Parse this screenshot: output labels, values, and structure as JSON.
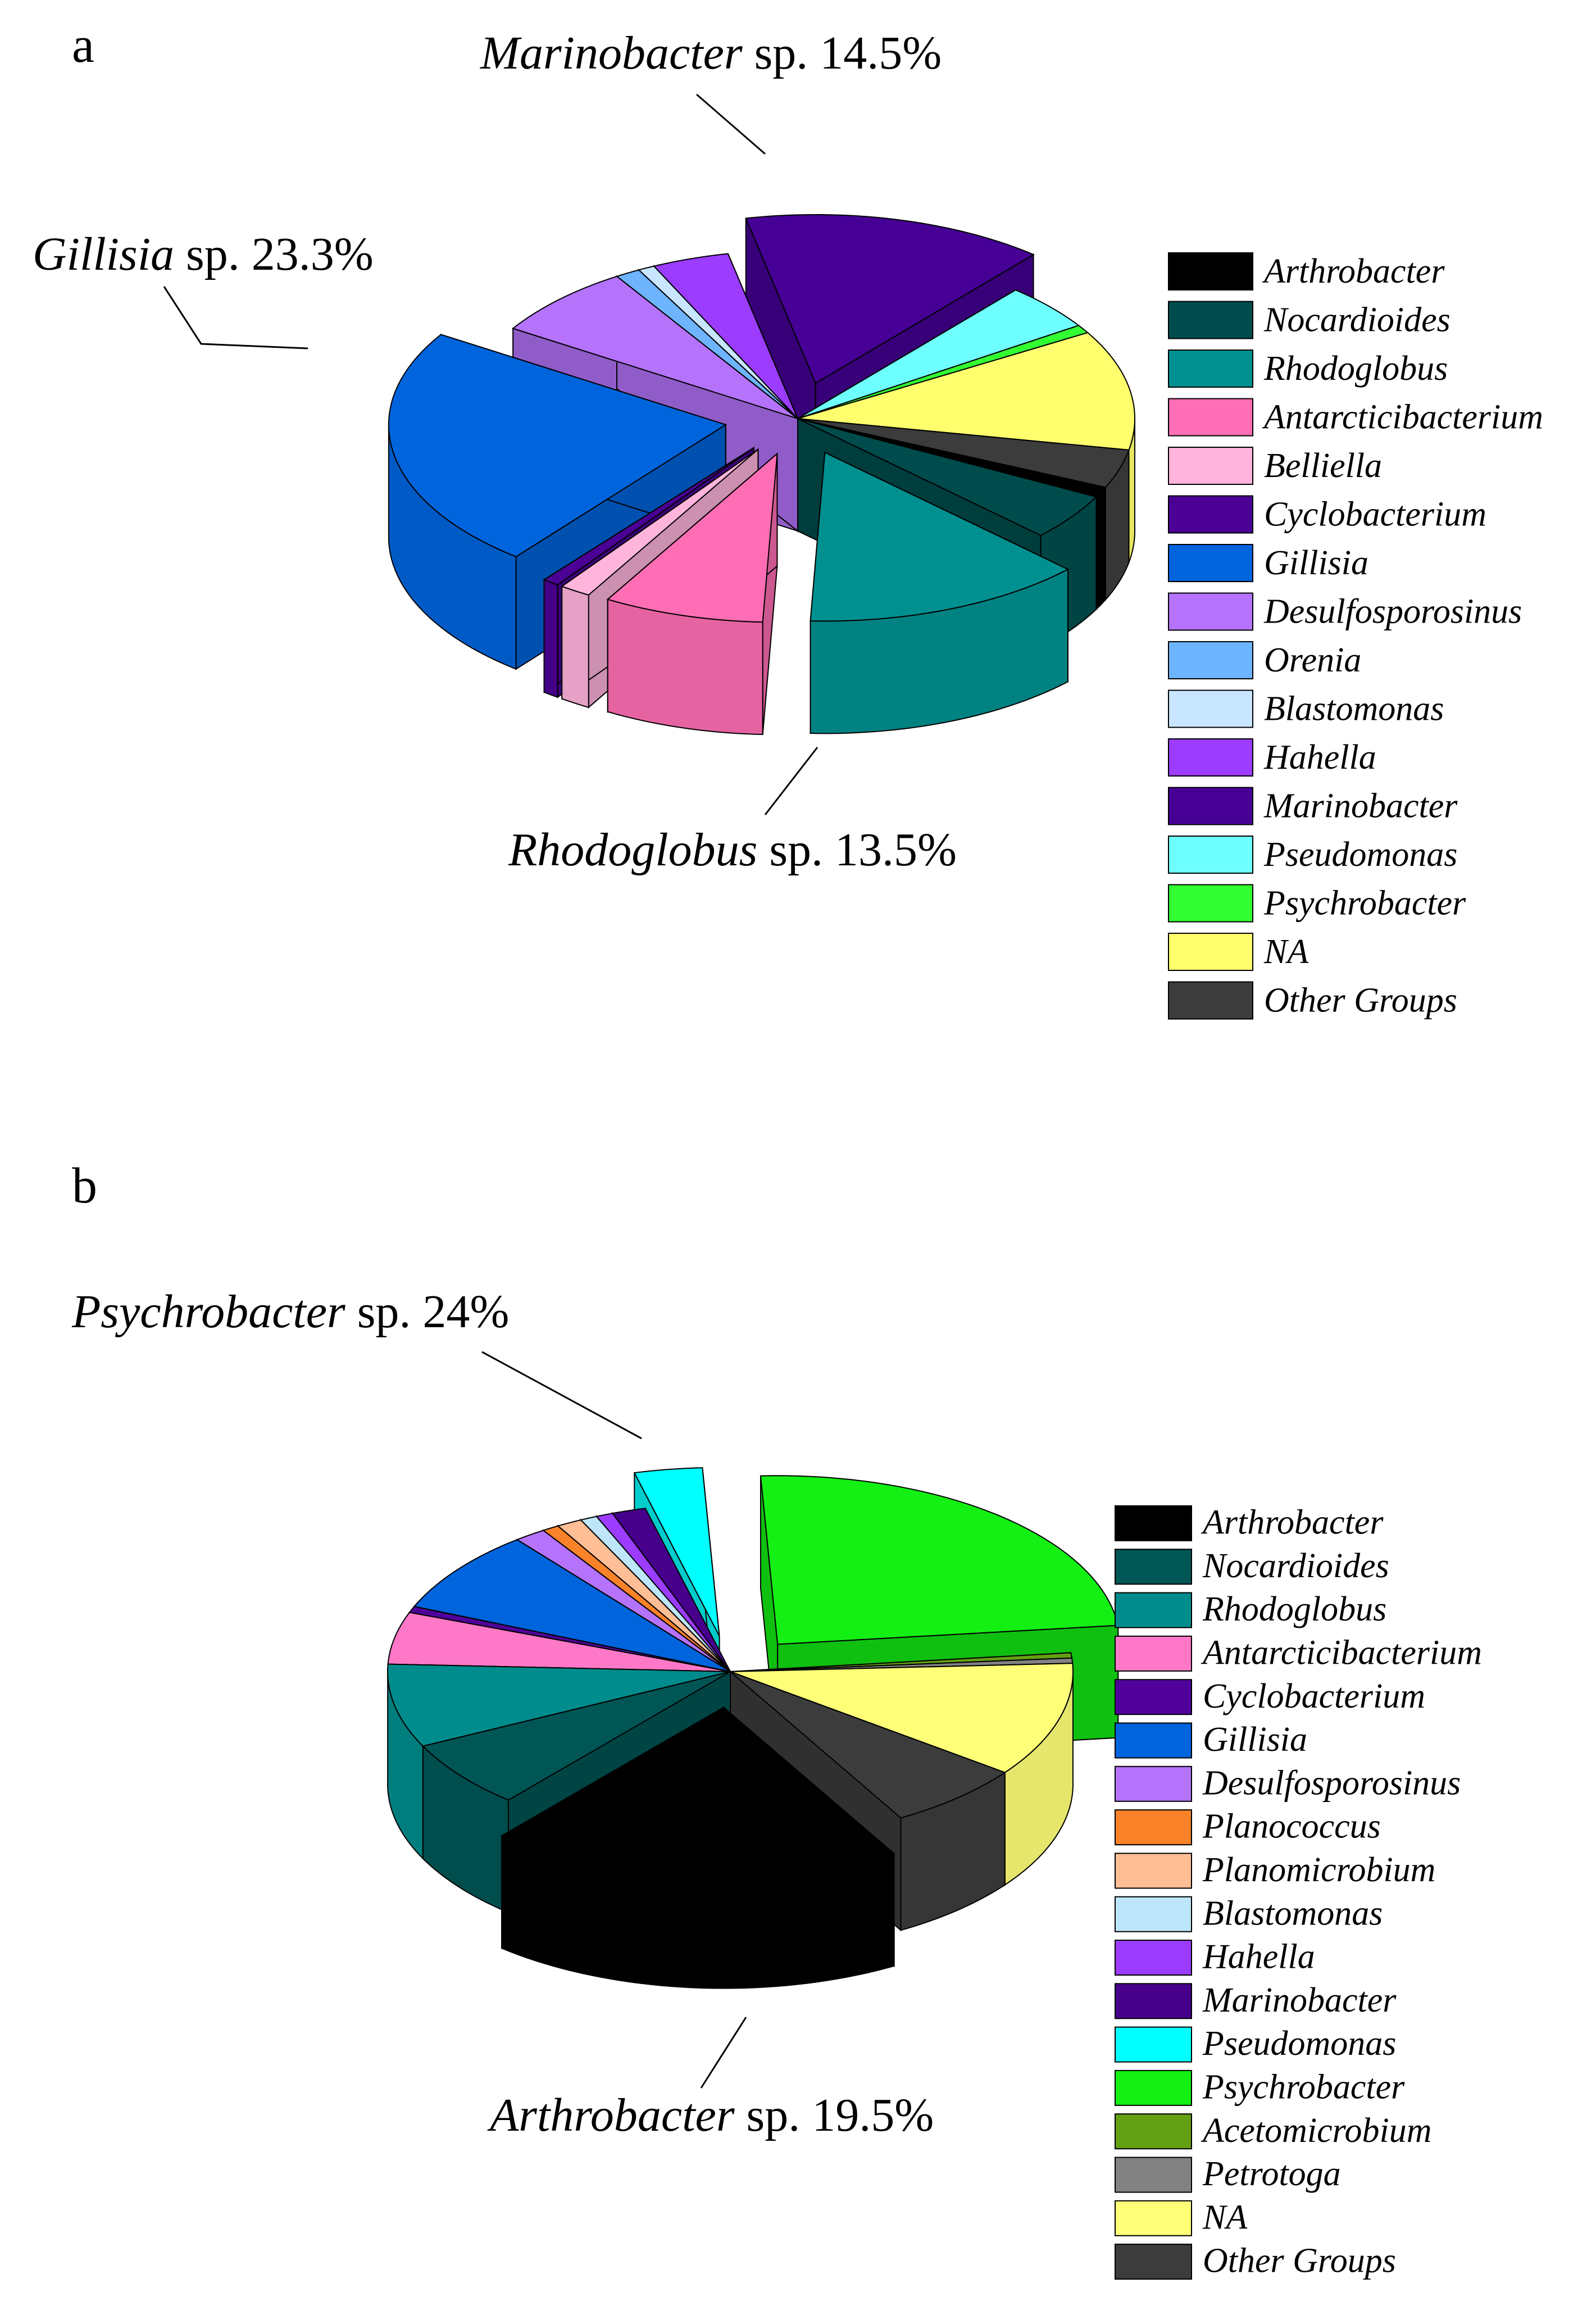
{
  "chart_data": [
    {
      "type": "pie",
      "panel": "a",
      "slices": [
        {
          "name": "Arthrobacter",
          "value": 1.0,
          "color": "#000000"
        },
        {
          "name": "Nocardioides",
          "value": 4.5,
          "color": "#004c4c"
        },
        {
          "name": "Rhodoglobus",
          "value": 13.5,
          "color": "#009090"
        },
        {
          "name": "Antarcticibacterium",
          "value": 7.7,
          "color": "#ff6eb4"
        },
        {
          "name": "Belliella",
          "value": 1.5,
          "color": "#ffb4dc"
        },
        {
          "name": "Cyclobacterium",
          "value": 0.8,
          "color": "#4b0096"
        },
        {
          "name": "Gillisia",
          "value": 23.3,
          "color": "#0064dc"
        },
        {
          "name": "Desulfosporosinus",
          "value": 7.0,
          "color": "#b473fa"
        },
        {
          "name": "Orenia",
          "value": 1.2,
          "color": "#6eb4ff"
        },
        {
          "name": "Blastomonas",
          "value": 0.8,
          "color": "#c8e6ff"
        },
        {
          "name": "Hahella",
          "value": 3.7,
          "color": "#9b3cff"
        },
        {
          "name": "Marinobacter",
          "value": 14.5,
          "color": "#460096"
        },
        {
          "name": "Pseudomonas",
          "value": 4.5,
          "color": "#6effff"
        },
        {
          "name": "Psychrobacter",
          "value": 0.8,
          "color": "#32ff32"
        },
        {
          "name": "NA",
          "value": 11.5,
          "color": "#ffff6e"
        },
        {
          "name": "Other Groups",
          "value": 3.7,
          "color": "#3c3c3c"
        }
      ],
      "callouts": [
        {
          "genus": "Marinobacter",
          "suffix": " sp. 14.5%"
        },
        {
          "genus": "Gillisia",
          "suffix": " sp. 23.3%"
        },
        {
          "genus": "Rhodoglobus",
          "suffix": " sp. 13.5%"
        }
      ]
    },
    {
      "type": "pie",
      "panel": "b",
      "slices": [
        {
          "name": "Arthrobacter",
          "value": 19.5,
          "color": "#000000"
        },
        {
          "name": "Nocardioides",
          "value": 6.5,
          "color": "#005555"
        },
        {
          "name": "Rhodoglobus",
          "value": 8.0,
          "color": "#008c8c"
        },
        {
          "name": "Antarcticibacterium",
          "value": 5.0,
          "color": "#ff78c8"
        },
        {
          "name": "Cyclobacterium",
          "value": 0.6,
          "color": "#50009b"
        },
        {
          "name": "Gillisia",
          "value": 8.0,
          "color": "#0064dc"
        },
        {
          "name": "Desulfosporosinus",
          "value": 1.5,
          "color": "#b473fa"
        },
        {
          "name": "Planococcus",
          "value": 0.8,
          "color": "#fa8228"
        },
        {
          "name": "Planomicrobium",
          "value": 1.2,
          "color": "#ffbe96"
        },
        {
          "name": "Blastomonas",
          "value": 0.8,
          "color": "#bee6fa"
        },
        {
          "name": "Hahella",
          "value": 0.8,
          "color": "#9b3cff"
        },
        {
          "name": "Marinobacter",
          "value": 1.6,
          "color": "#46008c"
        },
        {
          "name": "Pseudomonas",
          "value": 3.2,
          "color": "#00ffff"
        },
        {
          "name": "Psychrobacter",
          "value": 24.0,
          "color": "#14f014"
        },
        {
          "name": "Acetomicrobium",
          "value": 0.5,
          "color": "#64a014"
        },
        {
          "name": "Petrotoga",
          "value": 0.5,
          "color": "#828282"
        },
        {
          "name": "NA",
          "value": 11.0,
          "color": "#ffff78"
        },
        {
          "name": "Other Groups",
          "value": 6.5,
          "color": "#3c3c3c"
        }
      ],
      "callouts": [
        {
          "genus": "Psychrobacter",
          "suffix": " sp. 24%"
        },
        {
          "genus": "Arthrobacter",
          "suffix": " sp. 19.5%"
        }
      ]
    }
  ]
}
